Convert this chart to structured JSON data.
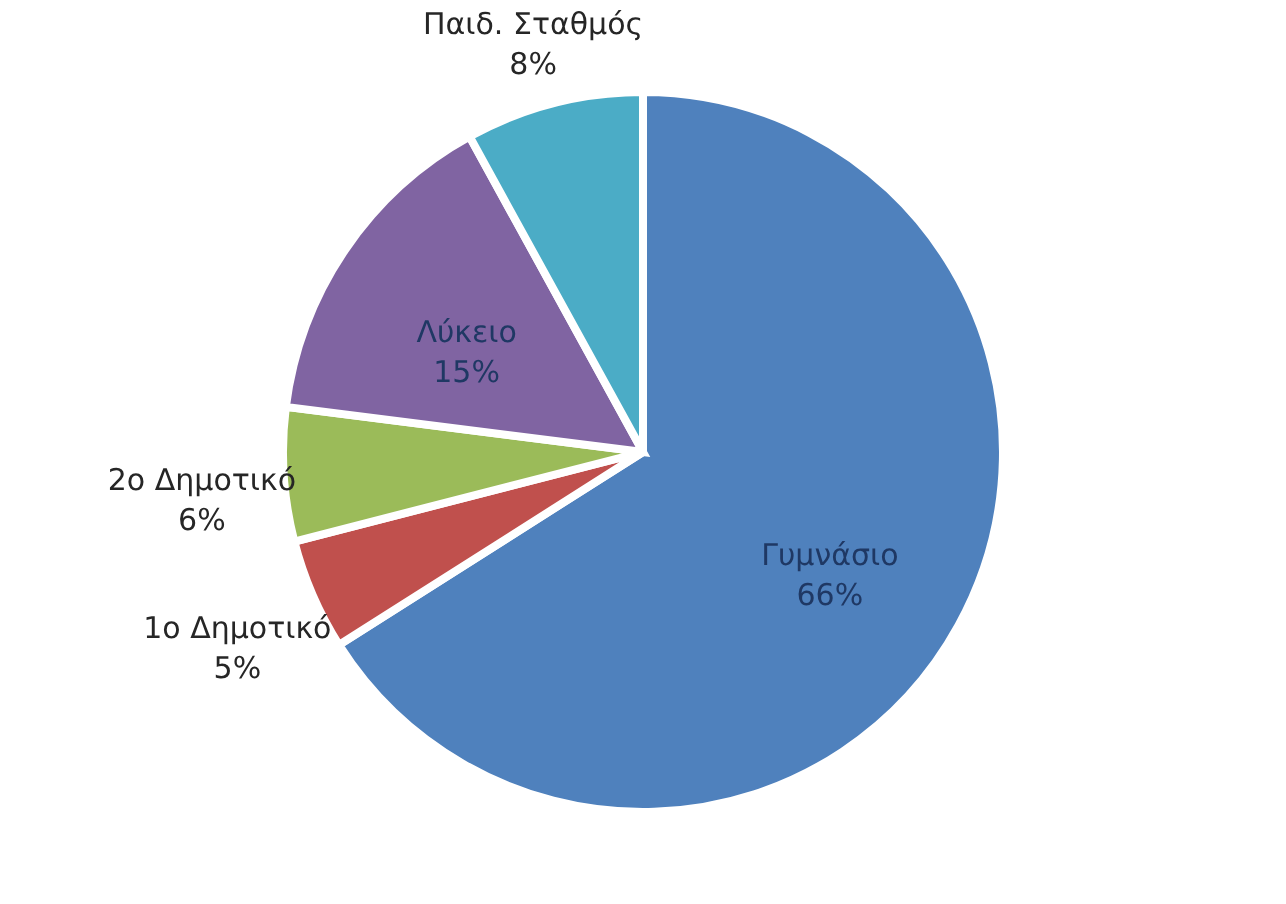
{
  "chart_data": {
    "type": "pie",
    "categories": [
      "Γυμνάσιο",
      "1ο Δημοτικό",
      "2ο Δημοτικό",
      "Λύκειο",
      "Παιδ. Σταθμός"
    ],
    "values": [
      66,
      5,
      6,
      15,
      8
    ],
    "value_labels": [
      "66%",
      "5%",
      "6%",
      "15%",
      "8%"
    ],
    "colors": [
      "#4f81bd",
      "#c0504d",
      "#9bbb59",
      "#8064a2",
      "#4bacc6"
    ]
  }
}
